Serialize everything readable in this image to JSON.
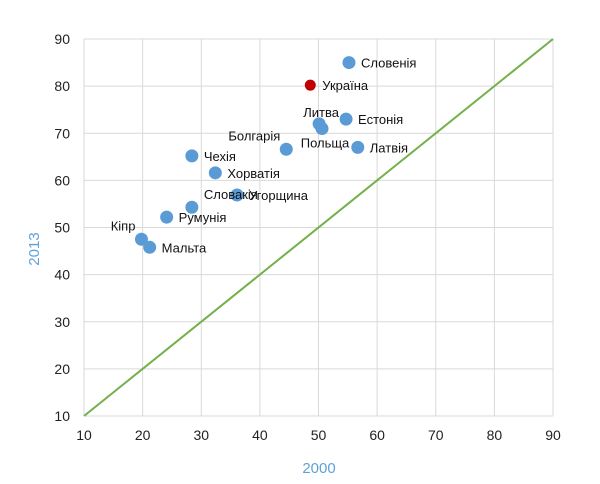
{
  "chart_data": {
    "type": "scatter",
    "xlabel": "2000",
    "ylabel": "2013",
    "xlim": [
      10,
      90
    ],
    "ylim": [
      10,
      90
    ],
    "xticks": [
      10,
      20,
      30,
      40,
      50,
      60,
      70,
      80,
      90
    ],
    "yticks": [
      10,
      20,
      30,
      40,
      50,
      60,
      70,
      80,
      90
    ],
    "grid": true,
    "reference_line": {
      "from": [
        10,
        10
      ],
      "to": [
        90,
        90
      ],
      "color": "#74b04a"
    },
    "colors": {
      "default": "#5b9bd5",
      "highlight": "#c00000",
      "grid": "#d9d9d9"
    },
    "points": [
      {
        "label": "Словенія",
        "x": 55.2,
        "y": 85.0,
        "highlight": false,
        "label_pos": "right"
      },
      {
        "label": "Україна",
        "x": 48.6,
        "y": 80.2,
        "highlight": true,
        "label_pos": "right"
      },
      {
        "label": "Литва",
        "x": 50.1,
        "y": 72.0,
        "highlight": false,
        "label_pos": "above"
      },
      {
        "label": "Естонія",
        "x": 54.7,
        "y": 73.0,
        "highlight": false,
        "label_pos": "right"
      },
      {
        "label": "Польща",
        "x": 50.6,
        "y": 71.0,
        "highlight": false,
        "label_pos": "below-left"
      },
      {
        "label": "Латвія",
        "x": 56.7,
        "y": 67.0,
        "highlight": false,
        "label_pos": "right"
      },
      {
        "label": "Болгарія",
        "x": 44.5,
        "y": 66.6,
        "highlight": false,
        "label_pos": "above-left"
      },
      {
        "label": "Чехія",
        "x": 28.4,
        "y": 65.2,
        "highlight": false,
        "label_pos": "right"
      },
      {
        "label": "Хорватія",
        "x": 32.4,
        "y": 61.6,
        "highlight": false,
        "label_pos": "right"
      },
      {
        "label": "Угорщина",
        "x": 36.1,
        "y": 56.9,
        "highlight": false,
        "label_pos": "right"
      },
      {
        "label": "Словакія",
        "x": 28.4,
        "y": 54.3,
        "highlight": false,
        "label_pos": "right-up"
      },
      {
        "label": "Румунія",
        "x": 24.1,
        "y": 52.2,
        "highlight": false,
        "label_pos": "right"
      },
      {
        "label": "Кіпр",
        "x": 19.8,
        "y": 47.5,
        "highlight": false,
        "label_pos": "above-left"
      },
      {
        "label": "Мальта",
        "x": 21.2,
        "y": 45.8,
        "highlight": false,
        "label_pos": "right"
      }
    ]
  }
}
